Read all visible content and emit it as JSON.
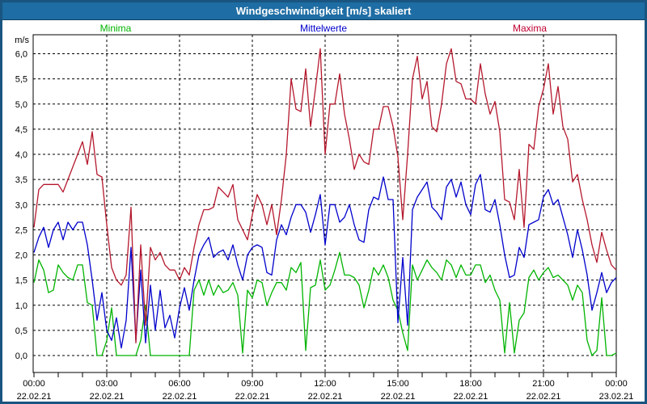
{
  "window": {
    "title": "Windgeschwindigkeit [m/s] skaliert"
  },
  "legend": {
    "minima": "Minima",
    "mittelwerte": "Mittelwerte",
    "maxima": "Maxima"
  },
  "colors": {
    "frame_border": "#1a5480",
    "titlebar_bg": "#1e6da4",
    "title_text": "#ffffff",
    "minima": "#00b400",
    "mittelwerte": "#0000cc",
    "maxima": "#b5182d",
    "maxima_label": "#c00030",
    "grid": "#000000",
    "plot_bg": "#ffffff"
  },
  "chart_data": {
    "type": "line",
    "title": "Windgeschwindigkeit [m/s] skaliert",
    "ylabel": "m/s",
    "ylim": [
      0,
      6
    ],
    "y_tick_step": 0.5,
    "y_tick_labels": [
      "6,0",
      "5,5",
      "5,0",
      "4,5",
      "4,0",
      "3,5",
      "3,0",
      "2,5",
      "2,0",
      "1,5",
      "1,0",
      "0,5",
      "0,0"
    ],
    "x_hours_range": [
      0,
      24
    ],
    "x_minor_tick_every_hours": 1,
    "x_major_ticks": [
      {
        "time": "00:00",
        "date": "22.02.21"
      },
      {
        "time": "03:00",
        "date": "22.02.21"
      },
      {
        "time": "06:00",
        "date": "22.02.21"
      },
      {
        "time": "09:00",
        "date": "22.02.21"
      },
      {
        "time": "12:00",
        "date": "22.02.21"
      },
      {
        "time": "15:00",
        "date": "22.02.21"
      },
      {
        "time": "18:00",
        "date": "22.02.21"
      },
      {
        "time": "21:00",
        "date": "22.02.21"
      },
      {
        "time": "00:00",
        "date": "23.02.21"
      }
    ],
    "grid": "dashed",
    "legend_position": "top",
    "sample_interval_hours": 0.2,
    "series": [
      {
        "name": "Minima",
        "color": "#00b400",
        "values": [
          1.45,
          1.9,
          1.7,
          1.25,
          1.3,
          1.8,
          1.65,
          1.55,
          1.5,
          1.8,
          1.8,
          1.05,
          1.0,
          0.0,
          0.0,
          0.3,
          0.95,
          0.0,
          0.0,
          0.0,
          0.0,
          0.0,
          0.3,
          1.0,
          0.0,
          0.0,
          0.0,
          0.0,
          0.0,
          0.0,
          0.0,
          0.0,
          0.0,
          1.3,
          1.5,
          1.2,
          1.5,
          1.2,
          1.4,
          1.25,
          1.3,
          1.45,
          1.2,
          0.05,
          1.3,
          1.15,
          1.5,
          1.45,
          1.0,
          1.25,
          1.45,
          1.45,
          1.3,
          1.75,
          1.65,
          1.85,
          0.1,
          1.35,
          1.4,
          1.9,
          1.3,
          1.4,
          1.7,
          2.05,
          1.6,
          1.6,
          1.55,
          1.4,
          0.95,
          1.3,
          1.75,
          1.6,
          1.8,
          1.55,
          1.1,
          0.9,
          0.45,
          0.1,
          1.8,
          1.5,
          1.7,
          1.9,
          1.75,
          1.65,
          1.5,
          1.9,
          1.8,
          1.55,
          1.8,
          1.6,
          1.6,
          1.8,
          1.8,
          1.45,
          1.6,
          1.3,
          1.1,
          0.05,
          1.05,
          0.05,
          0.7,
          0.85,
          1.55,
          1.7,
          1.5,
          1.65,
          1.75,
          1.55,
          1.6,
          1.5,
          1.4,
          1.1,
          1.4,
          1.25,
          0.3,
          0.0,
          0.1,
          1.15,
          0.0,
          0.0,
          0.05
        ]
      },
      {
        "name": "Mittelwerte",
        "color": "#0000cc",
        "values": [
          2.05,
          2.35,
          2.55,
          2.15,
          2.5,
          2.65,
          2.3,
          2.65,
          2.5,
          2.65,
          2.65,
          2.2,
          1.5,
          0.7,
          1.25,
          0.5,
          0.3,
          0.75,
          0.15,
          0.7,
          2.15,
          0.3,
          1.7,
          0.25,
          1.4,
          0.5,
          1.3,
          0.55,
          0.8,
          0.35,
          0.95,
          1.35,
          0.9,
          1.5,
          2.0,
          2.2,
          2.35,
          1.95,
          2.05,
          2.1,
          1.9,
          2.2,
          1.8,
          1.5,
          2.0,
          2.15,
          2.2,
          2.15,
          1.65,
          1.6,
          2.3,
          2.6,
          2.4,
          2.75,
          3.0,
          3.0,
          2.85,
          2.45,
          2.8,
          3.2,
          2.2,
          3.0,
          3.0,
          2.65,
          2.75,
          3.0,
          2.6,
          2.3,
          2.25,
          2.9,
          3.15,
          3.1,
          3.55,
          3.1,
          3.1,
          0.65,
          1.95,
          0.6,
          2.9,
          3.15,
          3.3,
          3.45,
          2.95,
          2.85,
          2.7,
          3.35,
          3.5,
          3.15,
          3.45,
          3.0,
          2.8,
          3.4,
          3.6,
          2.9,
          2.85,
          3.1,
          2.6,
          2.0,
          1.55,
          1.6,
          2.15,
          1.95,
          2.6,
          2.65,
          2.7,
          3.15,
          3.3,
          3.0,
          3.1,
          2.75,
          2.4,
          1.95,
          2.5,
          2.1,
          1.6,
          0.9,
          1.25,
          1.65,
          1.25,
          1.45,
          1.55
        ]
      },
      {
        "name": "Maxima",
        "color": "#b5182d",
        "values": [
          2.55,
          3.3,
          3.4,
          3.4,
          3.4,
          3.4,
          3.25,
          3.5,
          3.75,
          4.0,
          4.25,
          3.8,
          4.45,
          3.6,
          3.55,
          2.6,
          1.75,
          1.5,
          1.4,
          1.6,
          2.95,
          0.25,
          2.2,
          0.6,
          2.15,
          1.9,
          2.05,
          1.8,
          1.7,
          1.7,
          1.5,
          1.75,
          1.6,
          2.15,
          2.6,
          2.9,
          2.9,
          2.95,
          3.35,
          3.25,
          3.15,
          3.4,
          2.7,
          2.5,
          2.3,
          2.8,
          3.2,
          3.0,
          2.6,
          3.0,
          2.4,
          3.1,
          4.0,
          5.5,
          4.9,
          4.85,
          5.7,
          4.55,
          5.3,
          6.1,
          4.0,
          5.0,
          5.0,
          5.6,
          4.8,
          4.3,
          3.7,
          4.0,
          3.85,
          3.8,
          4.5,
          4.5,
          4.95,
          4.95,
          4.55,
          3.95,
          2.7,
          4.0,
          5.5,
          5.95,
          5.1,
          5.45,
          4.55,
          4.45,
          5.0,
          5.8,
          6.1,
          5.45,
          5.4,
          5.1,
          5.1,
          5.0,
          5.8,
          5.2,
          4.8,
          5.05,
          4.45,
          3.1,
          3.05,
          2.7,
          3.7,
          2.55,
          4.2,
          4.1,
          4.95,
          5.3,
          5.8,
          4.8,
          5.35,
          4.55,
          4.3,
          3.45,
          3.6,
          3.1,
          2.7,
          2.2,
          1.85,
          2.45,
          2.1,
          1.8,
          1.7
        ]
      }
    ]
  }
}
